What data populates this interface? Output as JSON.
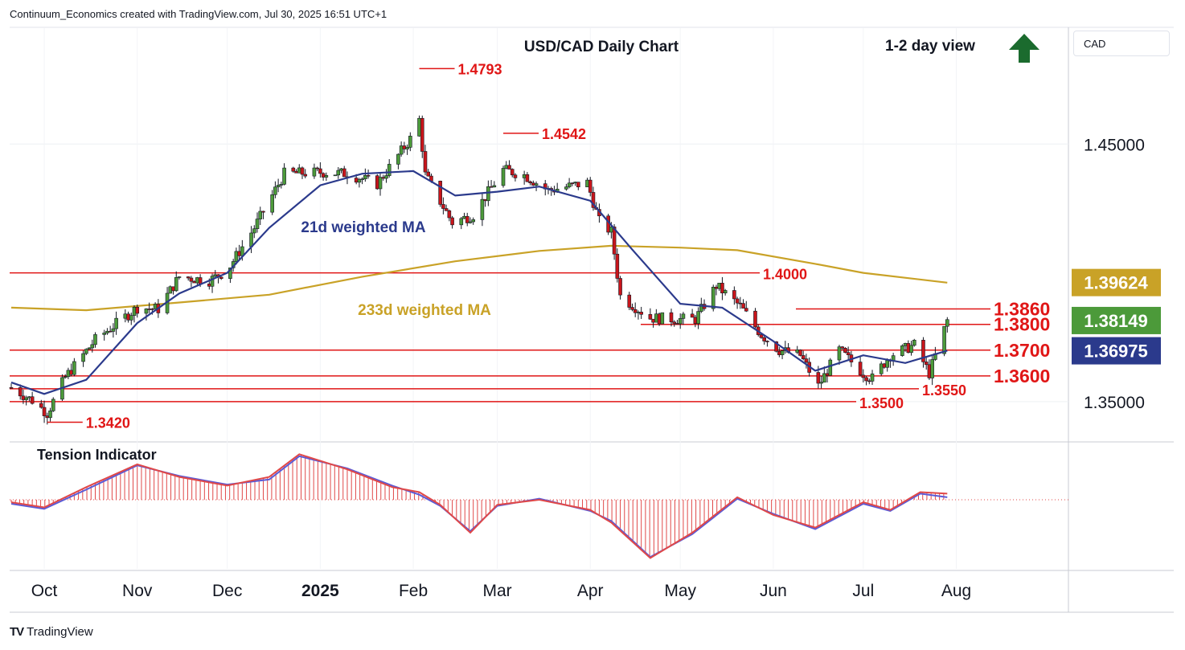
{
  "header": {
    "attribution": "Continuum_Economics created with TradingView.com, Jul 30, 2025 16:51 UTC+1",
    "currency_selector": "CAD",
    "footer_logo": "TradingView"
  },
  "colors": {
    "bull_candle": "#4c9a3a",
    "bear_candle": "#c9151b",
    "ma21": "#2b3a8c",
    "ma233": "#c9a227",
    "level_line": "#e01616",
    "arrow": "#1b6b2e",
    "tension_fill": "#e04848",
    "tension_fast": "#e04848",
    "tension_slow": "#5b5bd6"
  },
  "chart_data": {
    "type": "candlestick",
    "title": "USD/CAD Daily Chart",
    "view": {
      "label": "1-2 day view",
      "direction": "up",
      "icon": "up-arrow-icon"
    },
    "x_axis_labels": [
      "Oct",
      "Nov",
      "Dec",
      "2025",
      "Feb",
      "Mar",
      "Apr",
      "May",
      "Jun",
      "Jul",
      "Aug"
    ],
    "y_ticks": [
      "1.45000",
      "1.35000"
    ],
    "ylim": [
      1.335,
      1.495
    ],
    "price_tags": [
      {
        "value": "1.39624",
        "color": "#c9a227",
        "key": "ma233"
      },
      {
        "value": "1.38149",
        "color": "#4c9a3a",
        "key": "last"
      },
      {
        "value": "1.36975",
        "color": "#2b3a8c",
        "key": "ma21"
      }
    ],
    "levels": [
      {
        "label": "1.3860",
        "value": 1.386
      },
      {
        "label": "1.3800",
        "value": 1.38
      },
      {
        "label": "1.3700",
        "value": 1.37
      },
      {
        "label": "1.3600",
        "value": 1.36
      }
    ],
    "extra_lines": [
      {
        "label": "1.4000",
        "value": 1.4
      },
      {
        "label": "1.3550",
        "value": 1.355
      },
      {
        "label": "1.3500",
        "value": 1.35
      }
    ],
    "annotations": [
      {
        "label": "1.4793",
        "value": 1.4793
      },
      {
        "label": "1.4542",
        "value": 1.4542
      },
      {
        "label": "1.3420",
        "value": 1.342
      }
    ],
    "series": [
      {
        "name": "21d weighted MA"
      },
      {
        "name": "233d weighted MA"
      }
    ],
    "ma233_points": [
      [
        "2024-09-20",
        1.3865
      ],
      [
        "2024-10-15",
        1.3855
      ],
      [
        "2024-11-15",
        1.3885
      ],
      [
        "2024-12-15",
        1.3915
      ],
      [
        "2025-01-15",
        1.3985
      ],
      [
        "2025-02-15",
        1.4045
      ],
      [
        "2025-03-15",
        1.4085
      ],
      [
        "2025-04-08",
        1.4105
      ],
      [
        "2025-05-01",
        1.4098
      ],
      [
        "2025-05-20",
        1.4088
      ],
      [
        "2025-06-15",
        1.4035
      ],
      [
        "2025-07-01",
        1.4
      ],
      [
        "2025-07-29",
        1.3962
      ]
    ],
    "ma21_points": [
      [
        "2024-09-20",
        1.3575
      ],
      [
        "2024-10-01",
        1.353
      ],
      [
        "2024-10-15",
        1.3585
      ],
      [
        "2024-11-01",
        1.3805
      ],
      [
        "2024-11-15",
        1.392
      ],
      [
        "2024-12-01",
        1.4
      ],
      [
        "2024-12-15",
        1.4175
      ],
      [
        "2025-01-01",
        1.434
      ],
      [
        "2025-01-15",
        1.4385
      ],
      [
        "2025-02-01",
        1.4395
      ],
      [
        "2025-02-15",
        1.43
      ],
      [
        "2025-03-01",
        1.4315
      ],
      [
        "2025-03-15",
        1.4335
      ],
      [
        "2025-04-01",
        1.428
      ],
      [
        "2025-04-15",
        1.409
      ],
      [
        "2025-05-01",
        1.388
      ],
      [
        "2025-05-15",
        1.3865
      ],
      [
        "2025-06-01",
        1.3735
      ],
      [
        "2025-06-15",
        1.362
      ],
      [
        "2025-07-01",
        1.368
      ],
      [
        "2025-07-15",
        1.365
      ],
      [
        "2025-07-29",
        1.3698
      ]
    ],
    "price_anchors": [
      [
        "2024-09-20",
        1.3555
      ],
      [
        "2024-09-27",
        1.3505
      ],
      [
        "2024-10-02",
        1.3455
      ],
      [
        "2024-10-08",
        1.3595
      ],
      [
        "2024-10-18",
        1.374
      ],
      [
        "2024-11-01",
        1.3865
      ],
      [
        "2024-11-08",
        1.386
      ],
      [
        "2024-11-15",
        1.3985
      ],
      [
        "2024-11-25",
        1.397
      ],
      [
        "2024-12-01",
        1.401
      ],
      [
        "2024-12-10",
        1.4175
      ],
      [
        "2024-12-20",
        1.4385
      ],
      [
        "2025-01-02",
        1.439
      ],
      [
        "2025-01-10",
        1.4385
      ],
      [
        "2025-01-20",
        1.4345
      ],
      [
        "2025-01-31",
        1.452
      ],
      [
        "2025-02-03",
        1.4595
      ],
      [
        "2025-02-05",
        1.438
      ],
      [
        "2025-02-14",
        1.4195
      ],
      [
        "2025-02-21",
        1.4225
      ],
      [
        "2025-03-03",
        1.44
      ],
      [
        "2025-03-10",
        1.438
      ],
      [
        "2025-03-18",
        1.432
      ],
      [
        "2025-03-31",
        1.435
      ],
      [
        "2025-04-04",
        1.42
      ],
      [
        "2025-04-08",
        1.416
      ],
      [
        "2025-04-11",
        1.391
      ],
      [
        "2025-04-21",
        1.3825
      ],
      [
        "2025-05-01",
        1.382
      ],
      [
        "2025-05-06",
        1.382
      ],
      [
        "2025-05-13",
        1.395
      ],
      [
        "2025-05-21",
        1.387
      ],
      [
        "2025-05-28",
        1.376
      ],
      [
        "2025-06-03",
        1.37
      ],
      [
        "2025-06-10",
        1.368
      ],
      [
        "2025-06-16",
        1.356
      ],
      [
        "2025-06-23",
        1.37
      ],
      [
        "2025-07-01",
        1.361
      ],
      [
        "2025-07-04",
        1.359
      ],
      [
        "2025-07-10",
        1.368
      ],
      [
        "2025-07-18",
        1.372
      ],
      [
        "2025-07-23",
        1.361
      ],
      [
        "2025-07-29",
        1.3815
      ]
    ],
    "indicator": {
      "title": "Tension Indicator",
      "zero_line": "dotted",
      "fast_points": [
        [
          "2024-09-20",
          -0.05
        ],
        [
          "2024-10-01",
          -0.15
        ],
        [
          "2024-10-15",
          0.25
        ],
        [
          "2024-11-01",
          0.7
        ],
        [
          "2024-11-15",
          0.45
        ],
        [
          "2024-12-01",
          0.28
        ],
        [
          "2024-12-15",
          0.45
        ],
        [
          "2024-12-25",
          0.9
        ],
        [
          "2025-01-10",
          0.6
        ],
        [
          "2025-01-25",
          0.25
        ],
        [
          "2025-02-03",
          0.15
        ],
        [
          "2025-02-10",
          -0.1
        ],
        [
          "2025-02-20",
          -0.65
        ],
        [
          "2025-03-01",
          -0.1
        ],
        [
          "2025-03-15",
          0.0
        ],
        [
          "2025-04-01",
          -0.2
        ],
        [
          "2025-04-08",
          -0.45
        ],
        [
          "2025-04-21",
          -1.15
        ],
        [
          "2025-05-05",
          -0.65
        ],
        [
          "2025-05-20",
          0.05
        ],
        [
          "2025-06-01",
          -0.3
        ],
        [
          "2025-06-15",
          -0.55
        ],
        [
          "2025-07-01",
          -0.05
        ],
        [
          "2025-07-10",
          -0.2
        ],
        [
          "2025-07-20",
          0.15
        ],
        [
          "2025-07-29",
          0.12
        ]
      ],
      "slow_points": [
        [
          "2024-09-20",
          -0.08
        ],
        [
          "2024-10-01",
          -0.18
        ],
        [
          "2024-10-15",
          0.2
        ],
        [
          "2024-11-01",
          0.68
        ],
        [
          "2024-11-15",
          0.47
        ],
        [
          "2024-12-01",
          0.3
        ],
        [
          "2024-12-15",
          0.4
        ],
        [
          "2024-12-25",
          0.86
        ],
        [
          "2025-01-10",
          0.62
        ],
        [
          "2025-01-25",
          0.28
        ],
        [
          "2025-02-03",
          0.1
        ],
        [
          "2025-02-10",
          -0.12
        ],
        [
          "2025-02-20",
          -0.62
        ],
        [
          "2025-03-01",
          -0.12
        ],
        [
          "2025-03-15",
          0.02
        ],
        [
          "2025-04-01",
          -0.22
        ],
        [
          "2025-04-08",
          -0.42
        ],
        [
          "2025-04-21",
          -1.13
        ],
        [
          "2025-05-05",
          -0.68
        ],
        [
          "2025-05-20",
          0.02
        ],
        [
          "2025-06-01",
          -0.28
        ],
        [
          "2025-06-15",
          -0.58
        ],
        [
          "2025-07-01",
          -0.08
        ],
        [
          "2025-07-10",
          -0.22
        ],
        [
          "2025-07-20",
          0.12
        ],
        [
          "2025-07-29",
          0.05
        ]
      ]
    }
  }
}
